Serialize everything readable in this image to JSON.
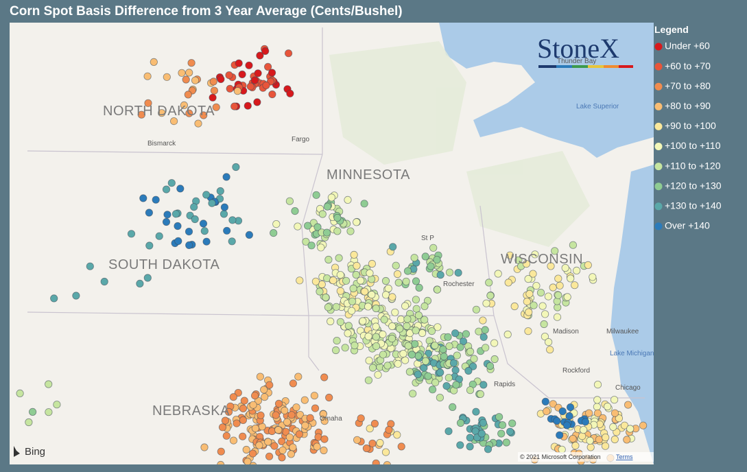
{
  "header": {
    "title": "Corn Spot Basis Difference from 3 Year Average (Cents/Bushel)"
  },
  "legend": {
    "title": "Legend",
    "items": [
      {
        "label": "Under +60",
        "color": "#d7191c"
      },
      {
        "label": "+60 to +70",
        "color": "#e8553a"
      },
      {
        "label": "+70 to +80",
        "color": "#f08c4f"
      },
      {
        "label": "+80 to +90",
        "color": "#f9bd73"
      },
      {
        "label": "+90 to +100",
        "color": "#fbe89b"
      },
      {
        "label": "+100 to +110",
        "color": "#f3f7b8"
      },
      {
        "label": "+110 to +120",
        "color": "#c6e5a0"
      },
      {
        "label": "+120 to +130",
        "color": "#8fcc93"
      },
      {
        "label": "+130 to +140",
        "color": "#5aa8a9"
      },
      {
        "label": "Over +140",
        "color": "#2b7bba"
      }
    ]
  },
  "map": {
    "states": [
      "NORTH DAKOTA",
      "MINNESOTA",
      "SOUTH DAKOTA",
      "WISCONSIN",
      "NEBRASKA"
    ],
    "places": [
      "Bismarck",
      "Fargo",
      "Thunder Bay",
      "Lake Superior",
      "St P",
      "Rochester",
      "Madison",
      "Milwaukee",
      "Lake Michigan",
      "Rockford",
      "Rapids",
      "Chicago",
      "Omaha"
    ]
  },
  "logo": "StoneX",
  "attribution": {
    "provider": "Bing",
    "copyright": "© 2021 Microsoft Corporation",
    "terms": "Terms"
  }
}
